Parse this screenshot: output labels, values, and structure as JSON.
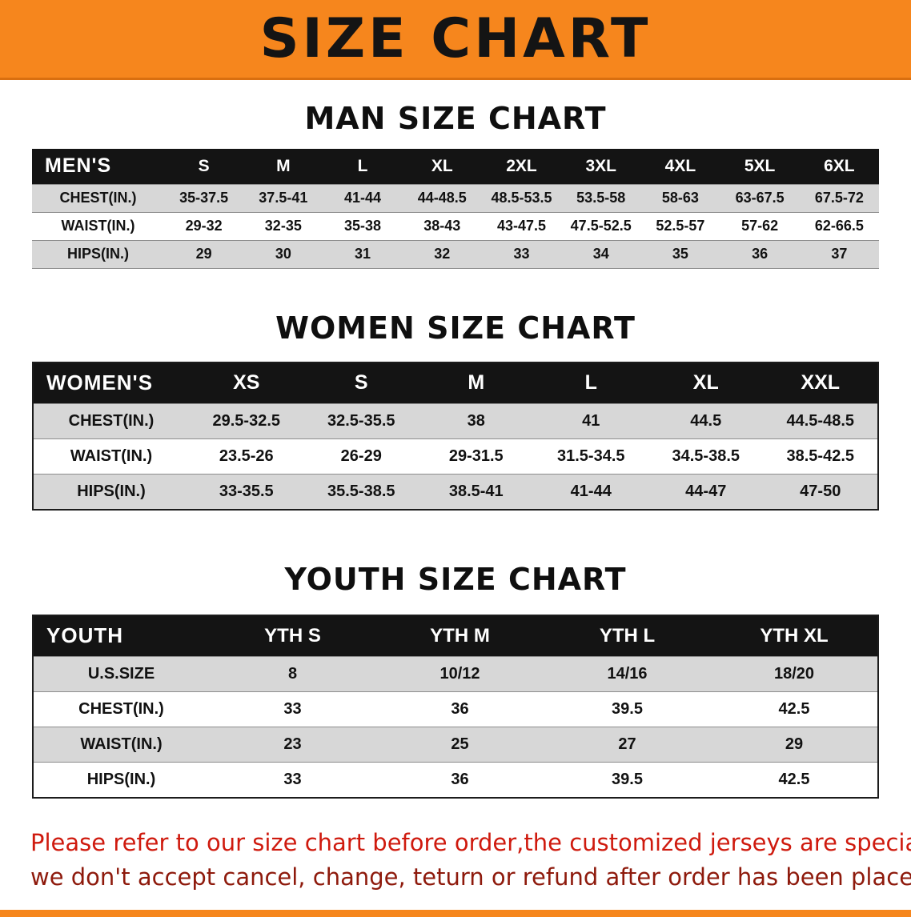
{
  "banner": {
    "title": "SIZE CHART",
    "bg_color": "#f6861d"
  },
  "chart_data": [
    {
      "type": "table",
      "title": "MAN SIZE CHART",
      "corner_label": "MEN'S",
      "columns": [
        "S",
        "M",
        "L",
        "XL",
        "2XL",
        "3XL",
        "4XL",
        "5XL",
        "6XL"
      ],
      "rows": [
        {
          "label": "CHEST(IN.)",
          "values": [
            "35-37.5",
            "37.5-41",
            "41-44",
            "44-48.5",
            "48.5-53.5",
            "53.5-58",
            "58-63",
            "63-67.5",
            "67.5-72"
          ]
        },
        {
          "label": "WAIST(IN.)",
          "values": [
            "29-32",
            "32-35",
            "35-38",
            "38-43",
            "43-47.5",
            "47.5-52.5",
            "52.5-57",
            "57-62",
            "62-66.5"
          ]
        },
        {
          "label": "HIPS(IN.)",
          "values": [
            "29",
            "30",
            "31",
            "32",
            "33",
            "34",
            "35",
            "36",
            "37"
          ]
        }
      ]
    },
    {
      "type": "table",
      "title": "WOMEN SIZE CHART",
      "corner_label": "WOMEN'S",
      "columns": [
        "XS",
        "S",
        "M",
        "L",
        "XL",
        "XXL"
      ],
      "rows": [
        {
          "label": "CHEST(IN.)",
          "values": [
            "29.5-32.5",
            "32.5-35.5",
            "38",
            "41",
            "44.5",
            "44.5-48.5"
          ]
        },
        {
          "label": "WAIST(IN.)",
          "values": [
            "23.5-26",
            "26-29",
            "29-31.5",
            "31.5-34.5",
            "34.5-38.5",
            "38.5-42.5"
          ]
        },
        {
          "label": "HIPS(IN.)",
          "values": [
            "33-35.5",
            "35.5-38.5",
            "38.5-41",
            "41-44",
            "44-47",
            "47-50"
          ]
        }
      ]
    },
    {
      "type": "table",
      "title": "YOUTH SIZE CHART",
      "corner_label": "YOUTH",
      "columns": [
        "YTH S",
        "YTH M",
        "YTH L",
        "YTH XL"
      ],
      "rows": [
        {
          "label": "U.S.SIZE",
          "values": [
            "8",
            "10/12",
            "14/16",
            "18/20"
          ]
        },
        {
          "label": "CHEST(IN.)",
          "values": [
            "33",
            "36",
            "39.5",
            "42.5"
          ]
        },
        {
          "label": "WAIST(IN.)",
          "values": [
            "23",
            "25",
            "27",
            "29"
          ]
        },
        {
          "label": "HIPS(IN.)",
          "values": [
            "33",
            "36",
            "39.5",
            "42.5"
          ]
        }
      ]
    }
  ],
  "disclaimer": {
    "line1": "Please refer to our size chart before order,the customized jerseys are special products,",
    "line2": "we don't accept cancel, change, teturn or refund after order has been placed!",
    "line1_color": "#cf1a0e",
    "line2_color": "#8e1a0c"
  }
}
